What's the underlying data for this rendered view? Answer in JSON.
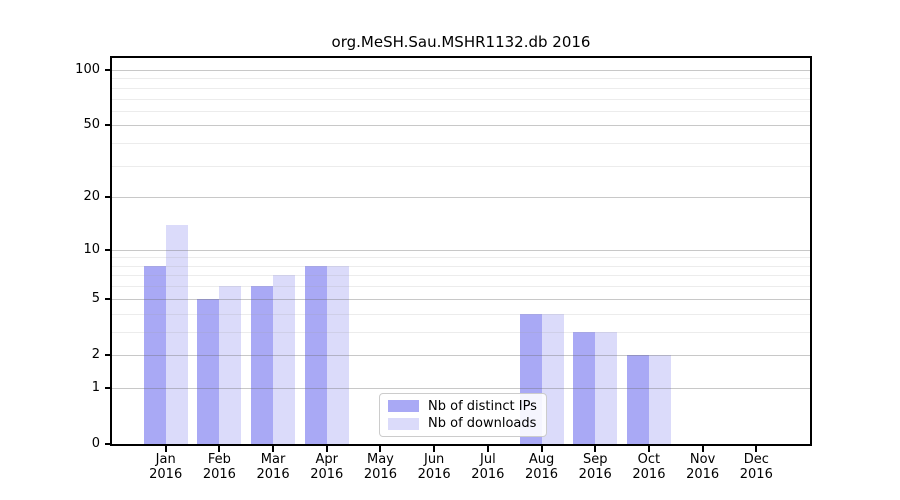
{
  "chart_data": {
    "type": "bar",
    "title": "org.MeSH.Sau.MSHR1132.db 2016",
    "categories": [
      "Jan",
      "Feb",
      "Mar",
      "Apr",
      "May",
      "Jun",
      "Jul",
      "Aug",
      "Sep",
      "Oct",
      "Nov",
      "Dec"
    ],
    "category_year": "2016",
    "series": [
      {
        "name": "Nb of distinct IPs",
        "color": "#a9a9f5",
        "values": [
          8,
          5,
          6,
          8,
          0,
          0,
          0,
          4,
          3,
          2,
          0,
          0
        ]
      },
      {
        "name": "Nb of downloads",
        "color": "#dbdbfa",
        "values": [
          14,
          6,
          7,
          8,
          0,
          0,
          0,
          4,
          3,
          2,
          0,
          0
        ]
      }
    ],
    "y_axis": {
      "scale": "log1p",
      "major_ticks": [
        0,
        1,
        2,
        5,
        10,
        20,
        50,
        100
      ],
      "minor_gridlines": [
        3,
        4,
        6,
        7,
        8,
        9,
        30,
        40,
        60,
        70,
        80,
        90
      ],
      "max_tick": 100
    },
    "xlabel": "",
    "ylabel": "",
    "grid": true,
    "legend_position": "lower-center"
  },
  "colors": {
    "bar_distinct_ips": "#a9a9f5",
    "bar_downloads": "#dbdbfa",
    "major_grid": "#c4c4c4",
    "minor_grid": "#e9e9e9",
    "spine": "#000000"
  }
}
